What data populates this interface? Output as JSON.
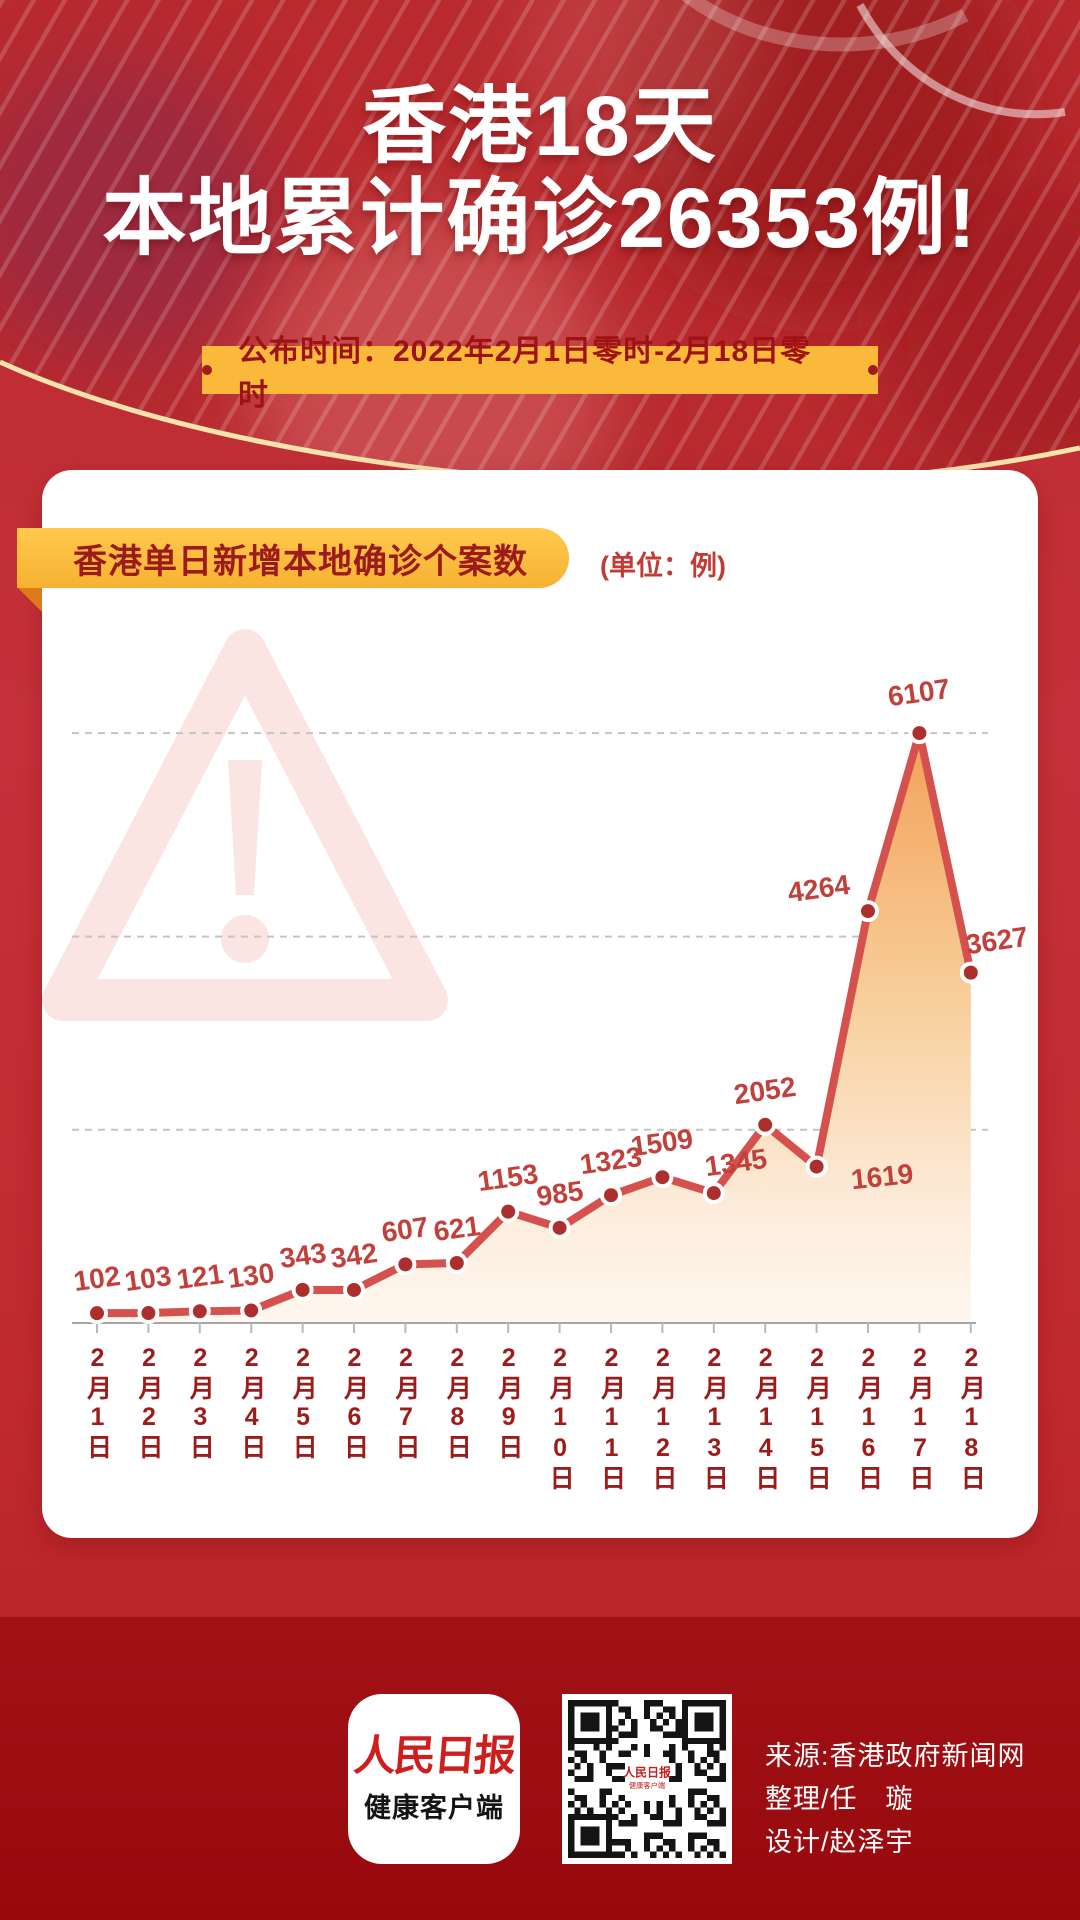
{
  "header": {
    "title_line1": "香港18天",
    "title_line2": "本地累计确诊26353例!",
    "date_banner": "公布时间：2022年2月1日零时-2月18日零时"
  },
  "chart_card": {
    "title": "香港单日新增本地确诊个案数",
    "unit_label": "(单位：例)"
  },
  "chart_data": {
    "type": "line",
    "title": "香港单日新增本地确诊个案数",
    "unit": "例",
    "categories": [
      "2月1日",
      "2月2日",
      "2月3日",
      "2月4日",
      "2月5日",
      "2月6日",
      "2月7日",
      "2月8日",
      "2月9日",
      "2月10日",
      "2月11日",
      "2月12日",
      "2月13日",
      "2月14日",
      "2月15日",
      "2月16日",
      "2月17日",
      "2月18日"
    ],
    "values": [
      102,
      103,
      121,
      130,
      343,
      342,
      607,
      621,
      1153,
      985,
      1323,
      1509,
      1345,
      2052,
      1619,
      4264,
      6107,
      3627
    ],
    "total": 26353,
    "ylim": [
      0,
      6500
    ],
    "gridline_values": [
      2000,
      4000,
      6107
    ],
    "grid_style": "horizontal dashed",
    "legend": "none",
    "area_fill": true,
    "colors": {
      "line": "#d5514d",
      "point_fill": "#ac2f2d",
      "point_stroke": "#ffffff",
      "value_label": "#c2403b",
      "axis": "#a6a6a6",
      "gridline": "#c4c4c4",
      "area_top": "#f3a159",
      "area_bottom": "#fef7ef",
      "x_label": "#9c1b1b"
    }
  },
  "icons": {
    "watermark": "warning-triangle-icon",
    "qr": "qr-code"
  },
  "theme": {
    "header_red": "#b82a2e",
    "banner_yellow": "#fbb93c",
    "pill_yellow": "#f9b93c",
    "footer_red": "#9d1013",
    "card_white": "#ffffff",
    "gold_edge": "#f5e3ae"
  },
  "footer": {
    "logo_line1": "人民日报",
    "logo_line2": "健康客户端",
    "source": "来源:香港政府新闻网",
    "editor": "整理/任　璇",
    "designer": "设计/赵泽宇"
  }
}
